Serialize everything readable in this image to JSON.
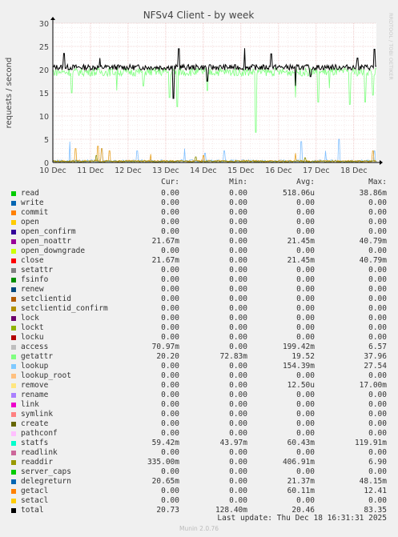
{
  "chart_data": {
    "type": "line",
    "title": "NFSv4 Client - by week",
    "ylabel": "requests / second",
    "side_label": "RRDTOOL / TOBI OETIKER",
    "ylim": [
      0,
      30
    ],
    "yticks": [
      0,
      5,
      10,
      15,
      20,
      25,
      30
    ],
    "xlim_days": [
      0,
      8.6
    ],
    "xticks": [
      "10 Dec",
      "11 Dec",
      "12 Dec",
      "13 Dec",
      "14 Dec",
      "15 Dec",
      "16 Dec",
      "17 Dec",
      "18 Dec"
    ],
    "grid": true,
    "series": [
      {
        "name": "total",
        "color": "#000000",
        "base": 20.5,
        "noise": 0.6,
        "spikes": [
          [
            0.3,
            23.5
          ],
          [
            1.25,
            22.5
          ],
          [
            3.2,
            13.8
          ],
          [
            3.35,
            24.5
          ],
          [
            4.1,
            17.5
          ],
          [
            5.1,
            24.6
          ],
          [
            5.8,
            23.4
          ],
          [
            6.45,
            16.5
          ],
          [
            6.85,
            18.5
          ],
          [
            8.1,
            22.5
          ],
          [
            8.55,
            24.4
          ]
        ]
      },
      {
        "name": "getattr",
        "color": "#7fff7f",
        "base": 19.5,
        "noise": 0.9,
        "spikes": [
          [
            0.5,
            15.0
          ],
          [
            1.7,
            15.5
          ],
          [
            2.4,
            16.5
          ],
          [
            3.1,
            14.0
          ],
          [
            3.3,
            12.0
          ],
          [
            4.1,
            15.5
          ],
          [
            5.4,
            6.5
          ],
          [
            6.45,
            14.0
          ],
          [
            7.05,
            13.0
          ],
          [
            7.35,
            16.0
          ],
          [
            7.9,
            12.5
          ],
          [
            8.3,
            13.0
          ],
          [
            8.5,
            14.5
          ]
        ]
      },
      {
        "name": "lookup",
        "color": "#7fbfff",
        "base": 0.3,
        "noise": 0.3,
        "spikes": [
          [
            0.45,
            4.5
          ],
          [
            1.3,
            3.0
          ],
          [
            2.25,
            2.5
          ],
          [
            3.5,
            3.0
          ],
          [
            4.05,
            2.0
          ],
          [
            4.55,
            2.5
          ],
          [
            6.6,
            4.5
          ],
          [
            7.25,
            2.5
          ],
          [
            7.6,
            5.0
          ],
          [
            8.55,
            2.5
          ]
        ]
      },
      {
        "name": "access",
        "color": "#e8a020",
        "base": 0.3,
        "noise": 0.2,
        "spikes": [
          [
            0.6,
            3.0
          ],
          [
            1.2,
            3.5
          ],
          [
            1.3,
            3.0
          ],
          [
            1.5,
            2.5
          ],
          [
            2.6,
            1.8
          ],
          [
            4.0,
            1.5
          ],
          [
            6.45,
            2.0
          ],
          [
            8.5,
            2.5
          ]
        ]
      },
      {
        "name": "readdir",
        "color": "#8c8c00",
        "base": 0.25,
        "noise": 0.15,
        "spikes": [
          [
            1.15,
            1.5
          ],
          [
            3.8,
            1.2
          ],
          [
            6.7,
            1.0
          ]
        ]
      }
    ],
    "columns": [
      "Cur:",
      "Min:",
      "Avg:",
      "Max:"
    ],
    "legend": [
      {
        "name": "read",
        "color": "#00cc00",
        "cur": "0.00",
        "min": "0.00",
        "avg": "518.06u",
        "max": "38.86m"
      },
      {
        "name": "write",
        "color": "#0066b3",
        "cur": "0.00",
        "min": "0.00",
        "avg": "0.00",
        "max": "0.00"
      },
      {
        "name": "commit",
        "color": "#ff8000",
        "cur": "0.00",
        "min": "0.00",
        "avg": "0.00",
        "max": "0.00"
      },
      {
        "name": "open",
        "color": "#ffcc00",
        "cur": "0.00",
        "min": "0.00",
        "avg": "0.00",
        "max": "0.00"
      },
      {
        "name": "open_confirm",
        "color": "#330099",
        "cur": "0.00",
        "min": "0.00",
        "avg": "0.00",
        "max": "0.00"
      },
      {
        "name": "open_noattr",
        "color": "#990099",
        "cur": "21.67m",
        "min": "0.00",
        "avg": "21.45m",
        "max": "40.79m"
      },
      {
        "name": "open_downgrade",
        "color": "#ccff00",
        "cur": "0.00",
        "min": "0.00",
        "avg": "0.00",
        "max": "0.00"
      },
      {
        "name": "close",
        "color": "#ff0000",
        "cur": "21.67m",
        "min": "0.00",
        "avg": "21.45m",
        "max": "40.79m"
      },
      {
        "name": "setattr",
        "color": "#808080",
        "cur": "0.00",
        "min": "0.00",
        "avg": "0.00",
        "max": "0.00"
      },
      {
        "name": "fsinfo",
        "color": "#008f00",
        "cur": "0.00",
        "min": "0.00",
        "avg": "0.00",
        "max": "0.00"
      },
      {
        "name": "renew",
        "color": "#00487d",
        "cur": "0.00",
        "min": "0.00",
        "avg": "0.00",
        "max": "0.00"
      },
      {
        "name": "setclientid",
        "color": "#b35a00",
        "cur": "0.00",
        "min": "0.00",
        "avg": "0.00",
        "max": "0.00"
      },
      {
        "name": "setclientid_confirm",
        "color": "#b38f00",
        "cur": "0.00",
        "min": "0.00",
        "avg": "0.00",
        "max": "0.00"
      },
      {
        "name": "lock",
        "color": "#6b006b",
        "cur": "0.00",
        "min": "0.00",
        "avg": "0.00",
        "max": "0.00"
      },
      {
        "name": "lockt",
        "color": "#8fb300",
        "cur": "0.00",
        "min": "0.00",
        "avg": "0.00",
        "max": "0.00"
      },
      {
        "name": "locku",
        "color": "#b30000",
        "cur": "0.00",
        "min": "0.00",
        "avg": "0.00",
        "max": "0.00"
      },
      {
        "name": "access",
        "color": "#bebebe",
        "cur": "70.97m",
        "min": "0.00",
        "avg": "199.42m",
        "max": "6.57"
      },
      {
        "name": "getattr",
        "color": "#80ff80",
        "cur": "20.20",
        "min": "72.83m",
        "avg": "19.52",
        "max": "37.96"
      },
      {
        "name": "lookup",
        "color": "#80c9ff",
        "cur": "0.00",
        "min": "0.00",
        "avg": "154.39m",
        "max": "27.54"
      },
      {
        "name": "lookup_root",
        "color": "#ffc080",
        "cur": "0.00",
        "min": "0.00",
        "avg": "0.00",
        "max": "0.00"
      },
      {
        "name": "remove",
        "color": "#ffe680",
        "cur": "0.00",
        "min": "0.00",
        "avg": "12.50u",
        "max": "17.00m"
      },
      {
        "name": "rename",
        "color": "#aa80ff",
        "cur": "0.00",
        "min": "0.00",
        "avg": "0.00",
        "max": "0.00"
      },
      {
        "name": "link",
        "color": "#ee00cc",
        "cur": "0.00",
        "min": "0.00",
        "avg": "0.00",
        "max": "0.00"
      },
      {
        "name": "symlink",
        "color": "#ff8080",
        "cur": "0.00",
        "min": "0.00",
        "avg": "0.00",
        "max": "0.00"
      },
      {
        "name": "create",
        "color": "#666600",
        "cur": "0.00",
        "min": "0.00",
        "avg": "0.00",
        "max": "0.00"
      },
      {
        "name": "pathconf",
        "color": "#ffbfff",
        "cur": "0.00",
        "min": "0.00",
        "avg": "0.00",
        "max": "0.00"
      },
      {
        "name": "statfs",
        "color": "#00ffcc",
        "cur": "59.42m",
        "min": "43.97m",
        "avg": "60.43m",
        "max": "119.91m"
      },
      {
        "name": "readlink",
        "color": "#cc6699",
        "cur": "0.00",
        "min": "0.00",
        "avg": "0.00",
        "max": "0.00"
      },
      {
        "name": "readdir",
        "color": "#999900",
        "cur": "335.00m",
        "min": "0.00",
        "avg": "406.91m",
        "max": "6.90"
      },
      {
        "name": "server_caps",
        "color": "#00cc00",
        "cur": "0.00",
        "min": "0.00",
        "avg": "0.00",
        "max": "0.00"
      },
      {
        "name": "delegreturn",
        "color": "#0066b3",
        "cur": "20.65m",
        "min": "0.00",
        "avg": "21.37m",
        "max": "48.15m"
      },
      {
        "name": "getacl",
        "color": "#ff8000",
        "cur": "0.00",
        "min": "0.00",
        "avg": "60.11m",
        "max": "12.41"
      },
      {
        "name": "setacl",
        "color": "#ffcc00",
        "cur": "0.00",
        "min": "0.00",
        "avg": "0.00",
        "max": "0.00"
      },
      {
        "name": "total",
        "color": "#000000",
        "cur": "20.73",
        "min": "128.40m",
        "avg": "20.46",
        "max": "83.35"
      }
    ]
  },
  "footer": {
    "last_update": "Last update: Thu Dec 18 16:31:31 2025",
    "version": "Munin 2.0.76"
  }
}
